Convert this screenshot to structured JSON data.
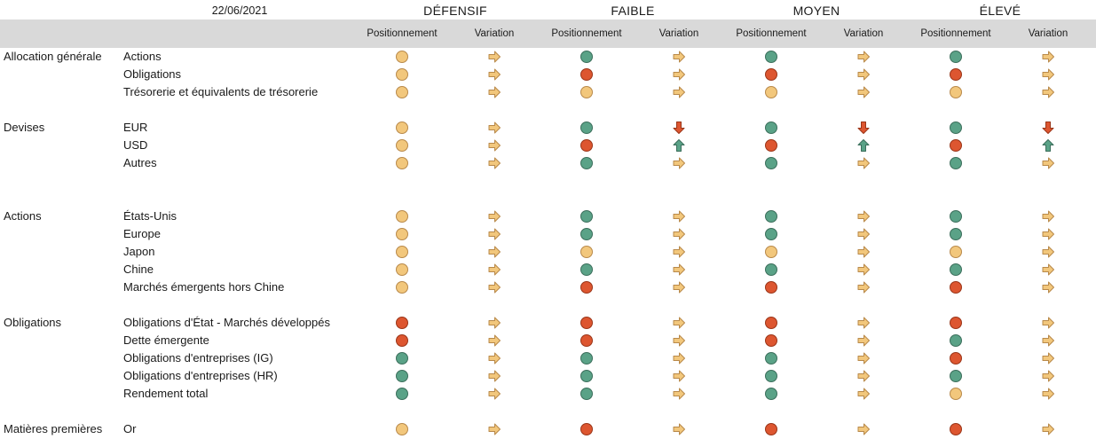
{
  "header": {
    "date": "22/06/2021",
    "profiles": [
      "DÉFENSIF",
      "FAIBLE",
      "MOYEN",
      "ÉLEVÉ"
    ],
    "col_positionnement": "Positionnement",
    "col_variation": "Variation"
  },
  "colors": {
    "neutral": "#f2c77c",
    "positive": "#5aa287",
    "negative": "#dd5630",
    "header_bg": "#d9d9d9"
  },
  "icons": {
    "dot": "status-dot-icon",
    "right": "arrow-right-icon",
    "up": "arrow-up-icon",
    "down": "arrow-down-icon"
  },
  "groups": [
    {
      "category": "Allocation générale",
      "rows": [
        {
          "asset": "Actions",
          "cells": [
            [
              "orange",
              "right"
            ],
            [
              "green",
              "right"
            ],
            [
              "green",
              "right"
            ],
            [
              "green",
              "right"
            ]
          ]
        },
        {
          "asset": "Obligations",
          "cells": [
            [
              "orange",
              "right"
            ],
            [
              "red",
              "right"
            ],
            [
              "red",
              "right"
            ],
            [
              "red",
              "right"
            ]
          ]
        },
        {
          "asset": "Trésorerie et équivalents de trésorerie",
          "cells": [
            [
              "orange",
              "right"
            ],
            [
              "orange",
              "right"
            ],
            [
              "orange",
              "right"
            ],
            [
              "orange",
              "right"
            ]
          ]
        }
      ]
    },
    {
      "category": "Devises",
      "rows": [
        {
          "asset": "EUR",
          "cells": [
            [
              "orange",
              "right"
            ],
            [
              "green",
              "down"
            ],
            [
              "green",
              "down"
            ],
            [
              "green",
              "down"
            ]
          ]
        },
        {
          "asset": "USD",
          "cells": [
            [
              "orange",
              "right"
            ],
            [
              "red",
              "up"
            ],
            [
              "red",
              "up"
            ],
            [
              "red",
              "up"
            ]
          ]
        },
        {
          "asset": "Autres",
          "cells": [
            [
              "orange",
              "right"
            ],
            [
              "green",
              "right"
            ],
            [
              "green",
              "right"
            ],
            [
              "green",
              "right"
            ]
          ]
        }
      ]
    },
    {
      "category": "Actions",
      "rows": [
        {
          "asset": "États-Unis",
          "cells": [
            [
              "orange",
              "right"
            ],
            [
              "green",
              "right"
            ],
            [
              "green",
              "right"
            ],
            [
              "green",
              "right"
            ]
          ]
        },
        {
          "asset": "Europe",
          "cells": [
            [
              "orange",
              "right"
            ],
            [
              "green",
              "right"
            ],
            [
              "green",
              "right"
            ],
            [
              "green",
              "right"
            ]
          ]
        },
        {
          "asset": "Japon",
          "cells": [
            [
              "orange",
              "right"
            ],
            [
              "orange",
              "right"
            ],
            [
              "orange",
              "right"
            ],
            [
              "orange",
              "right"
            ]
          ]
        },
        {
          "asset": "Chine",
          "cells": [
            [
              "orange",
              "right"
            ],
            [
              "green",
              "right"
            ],
            [
              "green",
              "right"
            ],
            [
              "green",
              "right"
            ]
          ]
        },
        {
          "asset": "Marchés émergents hors Chine",
          "cells": [
            [
              "orange",
              "right"
            ],
            [
              "red",
              "right"
            ],
            [
              "red",
              "right"
            ],
            [
              "red",
              "right"
            ]
          ]
        }
      ]
    },
    {
      "category": "Obligations",
      "rows": [
        {
          "asset": "Obligations d'État - Marchés développés",
          "cells": [
            [
              "red",
              "right"
            ],
            [
              "red",
              "right"
            ],
            [
              "red",
              "right"
            ],
            [
              "red",
              "right"
            ]
          ]
        },
        {
          "asset": "Dette émergente",
          "cells": [
            [
              "red",
              "right"
            ],
            [
              "red",
              "right"
            ],
            [
              "red",
              "right"
            ],
            [
              "green",
              "right"
            ]
          ]
        },
        {
          "asset": "Obligations d'entreprises (IG)",
          "cells": [
            [
              "green",
              "right"
            ],
            [
              "green",
              "right"
            ],
            [
              "green",
              "right"
            ],
            [
              "red",
              "right"
            ]
          ]
        },
        {
          "asset": "Obligations d'entreprises (HR)",
          "cells": [
            [
              "green",
              "right"
            ],
            [
              "green",
              "right"
            ],
            [
              "green",
              "right"
            ],
            [
              "green",
              "right"
            ]
          ]
        },
        {
          "asset": "Rendement total",
          "cells": [
            [
              "green",
              "right"
            ],
            [
              "green",
              "right"
            ],
            [
              "green",
              "right"
            ],
            [
              "orange",
              "right"
            ]
          ]
        }
      ]
    },
    {
      "category": "Matières premières",
      "rows": [
        {
          "asset": "Or",
          "cells": [
            [
              "orange",
              "right"
            ],
            [
              "red",
              "right"
            ],
            [
              "red",
              "right"
            ],
            [
              "red",
              "right"
            ]
          ]
        }
      ]
    }
  ]
}
